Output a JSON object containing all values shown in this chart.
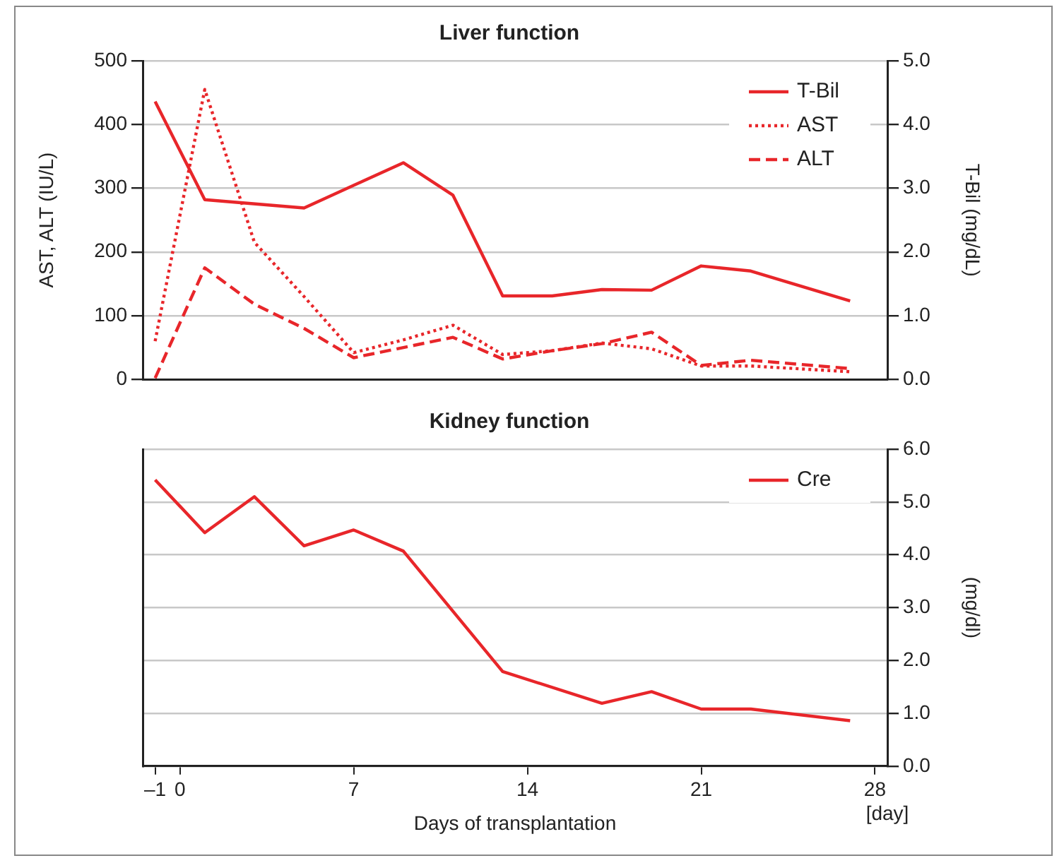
{
  "chart_data": [
    {
      "type": "line",
      "title": "Liver function",
      "ylabel": "AST, ALT (IU/L)",
      "y2label": "T-Bil (mg/dL)",
      "xlim": [
        -1.5,
        28.5
      ],
      "ylim": [
        0,
        500
      ],
      "yticks": [
        0,
        100,
        200,
        300,
        400,
        500
      ],
      "y2lim": [
        0,
        5
      ],
      "y2ticks": [
        {
          "value": 0,
          "label": "0.0"
        },
        {
          "value": 1,
          "label": "1.0"
        },
        {
          "value": 2,
          "label": "2.0"
        },
        {
          "value": 3,
          "label": "3.0"
        },
        {
          "value": 4,
          "label": "4.0"
        },
        {
          "value": 5,
          "label": "5.0"
        }
      ],
      "tick_labels": "y",
      "grid": "y",
      "legend": "top right",
      "marker": "none",
      "series": [
        {
          "name": "T-Bil",
          "color": "#e8262a",
          "axis": "y2",
          "line_style": "solid",
          "x": [
            -1,
            1,
            5,
            9,
            11,
            13,
            15,
            17,
            19,
            21,
            23,
            27
          ],
          "values": [
            4.36,
            2.82,
            2.69,
            3.4,
            2.89,
            1.31,
            1.31,
            1.41,
            1.4,
            1.78,
            1.7,
            1.23
          ]
        },
        {
          "name": "AST",
          "color": "#e8262a",
          "axis": "y",
          "line_style": "dotted",
          "x": [
            -1,
            1,
            3,
            5,
            7,
            9,
            11,
            13,
            15,
            17,
            19,
            21,
            23,
            27
          ],
          "values": [
            60,
            455,
            215,
            130,
            42,
            62,
            85,
            39,
            45,
            57,
            48,
            21,
            21,
            12
          ]
        },
        {
          "name": "ALT",
          "color": "#e8262a",
          "axis": "y",
          "line_style": "dashed",
          "x": [
            -1,
            1,
            3,
            5,
            7,
            9,
            11,
            13,
            15,
            17,
            19,
            21,
            23,
            27
          ],
          "values": [
            2,
            175,
            118,
            80,
            34,
            50,
            66,
            32,
            45,
            56,
            74,
            22,
            30,
            17
          ]
        }
      ]
    },
    {
      "type": "line",
      "title": "Kidney function",
      "xlabel": "Days of transplantation",
      "y2label": "(mg/dl)",
      "annotations": [
        "[day]"
      ],
      "xlim": [
        -1.5,
        28.5
      ],
      "xticks": [
        {
          "value": -1,
          "label": "–1"
        },
        0,
        7,
        14,
        21,
        28
      ],
      "y2lim": [
        0,
        6
      ],
      "y2ticks": [
        {
          "value": 0,
          "label": "0.0"
        },
        {
          "value": 1,
          "label": "1.0"
        },
        {
          "value": 2,
          "label": "2.0"
        },
        {
          "value": 3,
          "label": "3.0"
        },
        {
          "value": 4,
          "label": "4.0"
        },
        {
          "value": 5,
          "label": "5.0"
        },
        {
          "value": 6,
          "label": "6.0"
        }
      ],
      "grid": "y",
      "legend": "top right",
      "marker": "none",
      "series": [
        {
          "name": "Cre",
          "color": "#e8262a",
          "axis": "y2",
          "line_style": "solid",
          "x": [
            -1,
            1,
            3,
            5,
            7,
            9,
            13,
            17,
            19,
            21,
            23,
            27
          ],
          "values": [
            5.42,
            4.42,
            5.1,
            4.17,
            4.47,
            4.07,
            1.79,
            1.19,
            1.41,
            1.08,
            1.08,
            0.86
          ]
        }
      ]
    }
  ]
}
